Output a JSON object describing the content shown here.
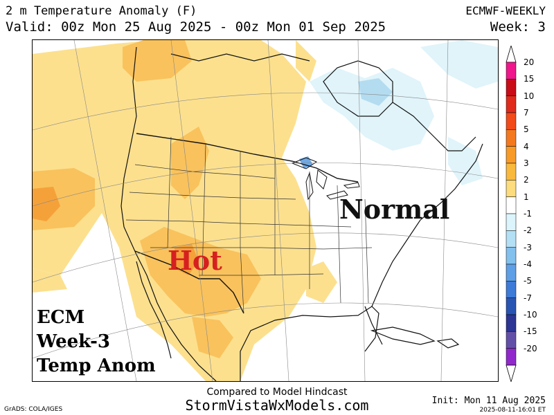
{
  "header": {
    "title": "2 m Temperature Anomaly (F)",
    "valid": "Valid: 00z Mon 25 Aug 2025 - 00z Mon 01 Sep 2025",
    "model": "ECMWF-WEEKLY",
    "week": "Week: 3"
  },
  "map": {
    "labels": {
      "hot": "Hot",
      "normal": "Normal",
      "ecm_lines": [
        "ECM",
        "Week-3",
        "Temp Anom"
      ]
    },
    "colors": {
      "hot_label": "#d62020",
      "anomaly_1_2": "#fce08e",
      "anomaly_2_3": "#f9c25c",
      "anomaly_3_4": "#f5a13a",
      "anomaly_m1_m2": "#e0f4fa",
      "anomaly_m2_m3": "#b4dcf0",
      "anomaly_m3_m4": "#6fa9e6"
    }
  },
  "colorbar": {
    "levels": [
      "20",
      "15",
      "10",
      "7",
      "5",
      "4",
      "3",
      "2",
      "1",
      "-1",
      "-2",
      "-3",
      "-4",
      "-5",
      "-7",
      "-10",
      "-15",
      "-20"
    ],
    "colors": [
      "#f0168c",
      "#c80c18",
      "#e02a1c",
      "#f24a18",
      "#f4791e",
      "#f79b26",
      "#f9b93c",
      "#fcdc7c",
      "#ffffff",
      "#dcf4fb",
      "#b4e0f5",
      "#82c0ee",
      "#5e9fe6",
      "#3e7ad8",
      "#2854b4",
      "#2c3494",
      "#6250a8",
      "#9028cc"
    ]
  },
  "footer": {
    "compared": "Compared to Model Hindcast",
    "site": "StormVistaWxModels.com",
    "grads": "GrADS: COLA/IGES",
    "init": "Init: Mon 11 Aug 2025",
    "stamp": "2025-08-11-16:01 ET"
  }
}
